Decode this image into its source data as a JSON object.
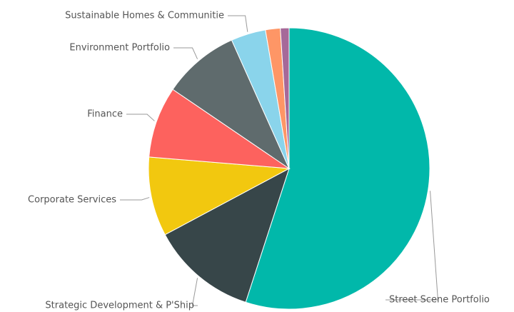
{
  "chart_data": {
    "type": "pie",
    "categories": [
      "Street Scene Portfolio",
      "Strategic Development & P'Ship",
      "Corporate Services",
      "Finance",
      "Environment Portfolio",
      "Sustainable Homes & Communitie",
      null,
      null
    ],
    "values": [
      55,
      12.2,
      9.1,
      8.2,
      8.8,
      4,
      1.7,
      1
    ],
    "colors": [
      "#01b8aa",
      "#374649",
      "#f2c80f",
      "#fd625e",
      "#5f6b6d",
      "#8ad4eb",
      "#fe9666",
      "#a66999"
    ]
  }
}
